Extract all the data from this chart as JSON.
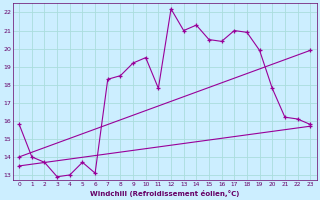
{
  "xlabel": "Windchill (Refroidissement éolien,°C)",
  "bg_color": "#cceeff",
  "grid_color": "#aadddd",
  "line_color": "#990099",
  "xlim": [
    -0.5,
    23.5
  ],
  "ylim": [
    12.7,
    22.5
  ],
  "yticks": [
    13,
    14,
    15,
    16,
    17,
    18,
    19,
    20,
    21,
    22
  ],
  "xticks": [
    0,
    1,
    2,
    3,
    4,
    5,
    6,
    7,
    8,
    9,
    10,
    11,
    12,
    13,
    14,
    15,
    16,
    17,
    18,
    19,
    20,
    21,
    22,
    23
  ],
  "series": [
    {
      "x": [
        0,
        1,
        2,
        3,
        4,
        5,
        6,
        7,
        8,
        9,
        10,
        11,
        12,
        13,
        14,
        15,
        16,
        17,
        18,
        19,
        20,
        21,
        22,
        23
      ],
      "y": [
        15.8,
        14.0,
        13.7,
        12.9,
        13.0,
        13.7,
        13.1,
        18.3,
        18.5,
        19.2,
        19.5,
        17.8,
        22.2,
        21.0,
        21.3,
        20.5,
        20.4,
        21.0,
        20.9,
        19.9,
        17.8,
        16.2,
        16.1,
        15.8
      ]
    },
    {
      "x": [
        0,
        23
      ],
      "y": [
        14.0,
        19.9
      ]
    },
    {
      "x": [
        0,
        23
      ],
      "y": [
        13.5,
        15.7
      ]
    }
  ]
}
